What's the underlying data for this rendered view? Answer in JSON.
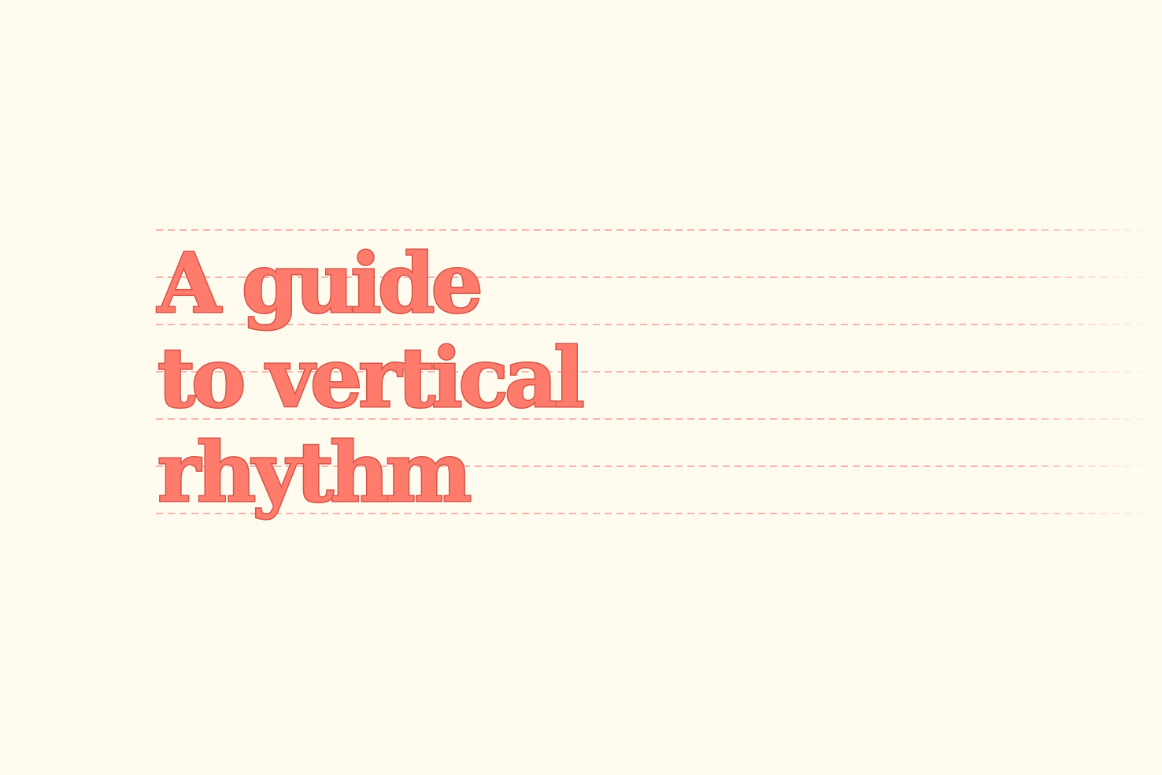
{
  "headline": {
    "lines": [
      "A guide",
      "to vertical",
      "rhythm"
    ]
  },
  "colors": {
    "background": "#FFFBEE",
    "text_fill": "#FF7B6B",
    "text_stroke": "#D4554A",
    "grid_line": "#F9B3AD"
  }
}
